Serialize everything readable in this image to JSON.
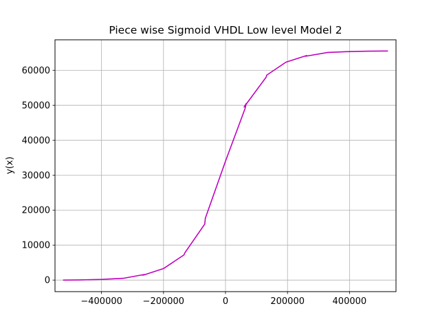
{
  "chart_data": {
    "type": "line",
    "title": "Piece wise Sigmoid VHDL Low level Model 2",
    "xlabel": "",
    "ylabel": "y(x)",
    "xlim": [
      -550000,
      550000
    ],
    "ylim": [
      -3300,
      68700
    ],
    "grid": true,
    "x_ticks": [
      -400000,
      -200000,
      0,
      200000,
      400000
    ],
    "x_tick_labels": [
      "−400000",
      "−200000",
      "0",
      "200000",
      "400000"
    ],
    "y_ticks": [
      0,
      10000,
      20000,
      30000,
      40000,
      50000,
      60000
    ],
    "y_tick_labels": [
      "0",
      "10000",
      "20000",
      "30000",
      "40000",
      "50000",
      "60000"
    ],
    "series": [
      {
        "color": "#bf00bf",
        "x": [
          -524000,
          -470000,
          -400000,
          -330000,
          -262000,
          -268000,
          -262000,
          -200000,
          -134000,
          -131000,
          -67000,
          -65000,
          0,
          63000,
          67000,
          60000,
          131000,
          133000,
          195000,
          262000,
          258000,
          330000,
          390000,
          460000,
          524000
        ],
        "y": [
          0,
          50,
          200,
          500,
          1600,
          1400,
          1500,
          3300,
          7200,
          7800,
          16000,
          17700,
          34000,
          49000,
          50500,
          49500,
          58000,
          58600,
          62300,
          64200,
          64000,
          65100,
          65300,
          65450,
          65500
        ]
      }
    ]
  }
}
